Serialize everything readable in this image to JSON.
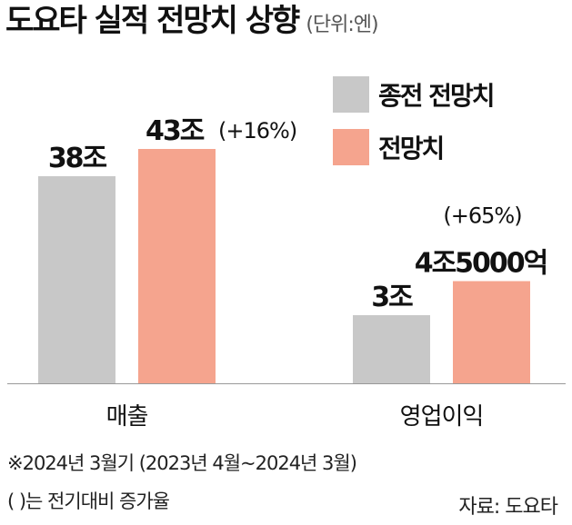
{
  "header": {
    "title": "도요타 실적 전망치 상향",
    "unit": "(단위:엔)"
  },
  "legend": [
    {
      "label": "종전 전망치",
      "color": "#c8c8c8"
    },
    {
      "label": "전망치",
      "color": "#f5a48e"
    }
  ],
  "chart_data": {
    "type": "bar",
    "categories": [
      "매출",
      "영업이익"
    ],
    "series": [
      {
        "name": "종전 전망치",
        "color": "#c8c8c8",
        "values": [
          38,
          3
        ],
        "labels": [
          "38조",
          "3조"
        ],
        "changes": [
          "",
          ""
        ]
      },
      {
        "name": "전망치",
        "color": "#f5a48e",
        "values": [
          43,
          4.5
        ],
        "labels": [
          "43조",
          "4조5000억"
        ],
        "changes": [
          "(+16%)",
          "(+65%)"
        ]
      }
    ],
    "units": "조 엔",
    "note": "매출 and 영업이익 bars are drawn on separate scales"
  },
  "footnotes": {
    "line1": "※2024년 3월기 (2023년 4월~2024년 3월)",
    "line2": "( )는 전기대비 증가율",
    "source": "자료: 도요타"
  }
}
